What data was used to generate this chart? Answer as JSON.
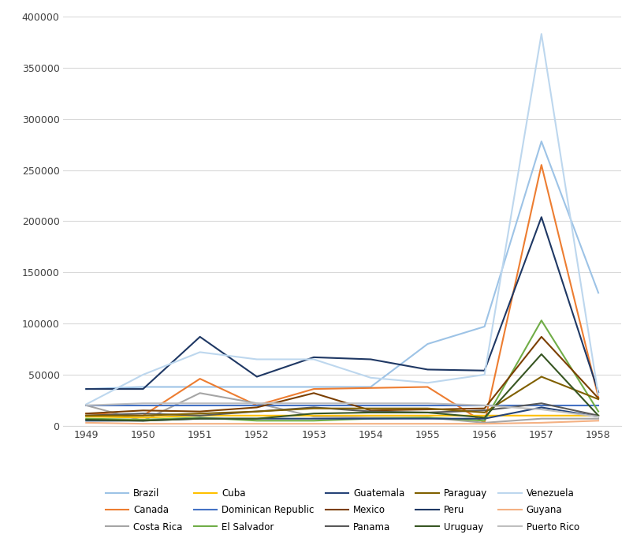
{
  "years": [
    1949,
    1950,
    1951,
    1952,
    1953,
    1954,
    1955,
    1956,
    1957,
    1958
  ],
  "series": {
    "Brazil": {
      "values": [
        36000,
        38000,
        38000,
        38000,
        38000,
        38000,
        80000,
        97000,
        278000,
        130000
      ],
      "color": "#9DC3E6"
    },
    "Canada": {
      "values": [
        12000,
        10000,
        46000,
        20000,
        36000,
        37000,
        38000,
        3000,
        255000,
        28000
      ],
      "color": "#ED7D31"
    },
    "Costa Rica": {
      "values": [
        20000,
        5000,
        32000,
        22000,
        9000,
        8000,
        8000,
        3000,
        7000,
        7000
      ],
      "color": "#A5A5A5"
    },
    "Cuba": {
      "values": [
        9000,
        8000,
        10000,
        10000,
        10000,
        10000,
        10000,
        10000,
        10000,
        10000
      ],
      "color": "#FFC000"
    },
    "Dominican Republic": {
      "values": [
        20000,
        20000,
        20000,
        20000,
        20000,
        20000,
        20000,
        20000,
        20000,
        20000
      ],
      "color": "#4472C4"
    },
    "El Salvador": {
      "values": [
        7000,
        6000,
        8000,
        5000,
        5000,
        7000,
        8000,
        5000,
        103000,
        14000
      ],
      "color": "#70AD47"
    },
    "Guatemala": {
      "values": [
        5000,
        5000,
        7000,
        7000,
        7000,
        7000,
        7000,
        7000,
        18000,
        9000
      ],
      "color": "#264478"
    },
    "Mexico": {
      "values": [
        12000,
        15000,
        14000,
        18000,
        32000,
        15000,
        16000,
        17000,
        87000,
        27000
      ],
      "color": "#7B3F00"
    },
    "Panama": {
      "values": [
        10000,
        12000,
        10000,
        14000,
        18000,
        14000,
        13000,
        15000,
        22000,
        10000
      ],
      "color": "#595959"
    },
    "Paraguay": {
      "values": [
        10000,
        10000,
        12000,
        14000,
        17000,
        17000,
        17000,
        13000,
        48000,
        26000
      ],
      "color": "#806000"
    },
    "Peru": {
      "values": [
        36000,
        36000,
        87000,
        48000,
        67000,
        65000,
        55000,
        54000,
        204000,
        33000
      ],
      "color": "#1F3864"
    },
    "Uruguay": {
      "values": [
        6000,
        5000,
        7000,
        7000,
        12000,
        13000,
        13000,
        8000,
        70000,
        10000
      ],
      "color": "#375623"
    },
    "Venezuela": {
      "values": [
        21000,
        50000,
        72000,
        65000,
        65000,
        47000,
        42000,
        50000,
        383000,
        30000
      ],
      "color": "#BDD7EE"
    },
    "Guyana": {
      "values": [
        3000,
        2000,
        2000,
        2000,
        2000,
        2000,
        2000,
        2000,
        3000,
        5000
      ],
      "color": "#F4B183"
    },
    "Puerto Rico": {
      "values": [
        20000,
        22000,
        22000,
        22000,
        22000,
        22000,
        22000,
        20000,
        16000,
        9000
      ],
      "color": "#BFBFBF"
    }
  },
  "ylim": [
    0,
    400000
  ],
  "yticks": [
    0,
    50000,
    100000,
    150000,
    200000,
    250000,
    300000,
    350000,
    400000
  ],
  "background_color": "#FFFFFF",
  "grid_color": "#D9D9D9",
  "legend_order": [
    "Brazil",
    "Canada",
    "Costa Rica",
    "Cuba",
    "Dominican Republic",
    "El Salvador",
    "Guatemala",
    "Mexico",
    "Panama",
    "Paraguay",
    "Peru",
    "Uruguay",
    "Venezuela",
    "Guyana",
    "Puerto Rico"
  ]
}
